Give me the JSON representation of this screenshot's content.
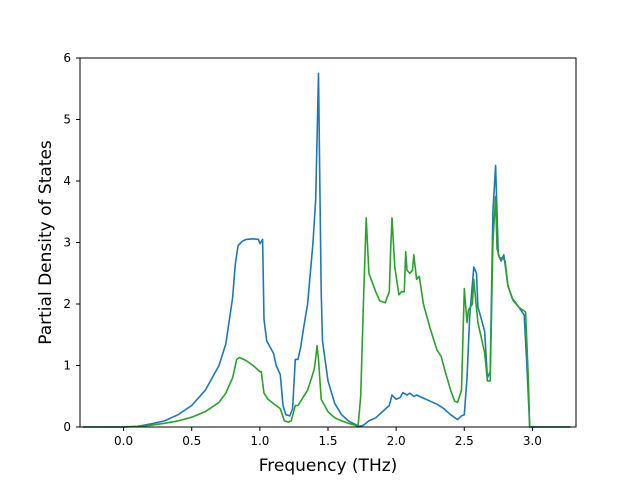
{
  "chart_data": {
    "type": "line",
    "title": "",
    "xlabel": "Frequency (THz)",
    "ylabel": "Partial Density of States",
    "xlim": [
      -0.32,
      3.32
    ],
    "ylim": [
      0,
      6
    ],
    "xticks": [
      0.0,
      0.5,
      1.0,
      1.5,
      2.0,
      2.5,
      3.0
    ],
    "xtick_labels": [
      "0.0",
      "0.5",
      "1.0",
      "1.5",
      "2.0",
      "2.5",
      "3.0"
    ],
    "yticks": [
      0,
      1,
      2,
      3,
      4,
      5,
      6
    ],
    "ytick_labels": [
      "0",
      "1",
      "2",
      "3",
      "4",
      "5",
      "6"
    ],
    "grid": false,
    "legend": false,
    "series": [
      {
        "color": "#1f77b4",
        "points": [
          [
            -0.3,
            0
          ],
          [
            0.0,
            0
          ],
          [
            0.1,
            0.01
          ],
          [
            0.15,
            0.03
          ],
          [
            0.2,
            0.05
          ],
          [
            0.3,
            0.1
          ],
          [
            0.4,
            0.2
          ],
          [
            0.5,
            0.35
          ],
          [
            0.6,
            0.6
          ],
          [
            0.7,
            1.0
          ],
          [
            0.75,
            1.35
          ],
          [
            0.8,
            2.1
          ],
          [
            0.82,
            2.65
          ],
          [
            0.84,
            2.95
          ],
          [
            0.87,
            3.02
          ],
          [
            0.9,
            3.05
          ],
          [
            0.95,
            3.06
          ],
          [
            0.99,
            3.05
          ],
          [
            1.0,
            2.98
          ],
          [
            1.02,
            3.05
          ],
          [
            1.03,
            1.75
          ],
          [
            1.05,
            1.4
          ],
          [
            1.1,
            1.2
          ],
          [
            1.12,
            1.0
          ],
          [
            1.15,
            0.85
          ],
          [
            1.17,
            0.35
          ],
          [
            1.19,
            0.2
          ],
          [
            1.22,
            0.18
          ],
          [
            1.24,
            0.3
          ],
          [
            1.26,
            1.1
          ],
          [
            1.28,
            1.1
          ],
          [
            1.3,
            1.3
          ],
          [
            1.32,
            1.6
          ],
          [
            1.35,
            2.0
          ],
          [
            1.37,
            2.5
          ],
          [
            1.39,
            3.0
          ],
          [
            1.41,
            3.7
          ],
          [
            1.43,
            5.75
          ],
          [
            1.44,
            4.0
          ],
          [
            1.45,
            2.2
          ],
          [
            1.46,
            1.4
          ],
          [
            1.5,
            0.75
          ],
          [
            1.55,
            0.38
          ],
          [
            1.6,
            0.2
          ],
          [
            1.65,
            0.1
          ],
          [
            1.7,
            0.04
          ],
          [
            1.73,
            0.01
          ],
          [
            1.76,
            0.03
          ],
          [
            1.8,
            0.1
          ],
          [
            1.85,
            0.15
          ],
          [
            1.9,
            0.25
          ],
          [
            1.95,
            0.35
          ],
          [
            1.97,
            0.52
          ],
          [
            2.0,
            0.45
          ],
          [
            2.03,
            0.48
          ],
          [
            2.05,
            0.56
          ],
          [
            2.08,
            0.52
          ],
          [
            2.1,
            0.55
          ],
          [
            2.13,
            0.5
          ],
          [
            2.15,
            0.52
          ],
          [
            2.2,
            0.47
          ],
          [
            2.25,
            0.42
          ],
          [
            2.3,
            0.37
          ],
          [
            2.35,
            0.3
          ],
          [
            2.4,
            0.2
          ],
          [
            2.45,
            0.12
          ],
          [
            2.48,
            0.18
          ],
          [
            2.5,
            0.2
          ],
          [
            2.52,
            0.8
          ],
          [
            2.54,
            1.8
          ],
          [
            2.57,
            2.6
          ],
          [
            2.59,
            2.5
          ],
          [
            2.6,
            1.95
          ],
          [
            2.62,
            1.8
          ],
          [
            2.65,
            1.55
          ],
          [
            2.67,
            0.8
          ],
          [
            2.69,
            0.9
          ],
          [
            2.71,
            3.5
          ],
          [
            2.73,
            4.25
          ],
          [
            2.75,
            2.8
          ],
          [
            2.77,
            2.7
          ],
          [
            2.79,
            2.8
          ],
          [
            2.82,
            2.3
          ],
          [
            2.85,
            2.1
          ],
          [
            2.9,
            1.95
          ],
          [
            2.94,
            1.82
          ],
          [
            2.96,
            1.0
          ],
          [
            2.98,
            0.0
          ],
          [
            3.0,
            0
          ],
          [
            3.28,
            0
          ]
        ]
      },
      {
        "color": "#2ca02c",
        "points": [
          [
            -0.3,
            0
          ],
          [
            0.0,
            0
          ],
          [
            0.1,
            0.01
          ],
          [
            0.2,
            0.03
          ],
          [
            0.3,
            0.06
          ],
          [
            0.4,
            0.1
          ],
          [
            0.5,
            0.16
          ],
          [
            0.6,
            0.25
          ],
          [
            0.7,
            0.4
          ],
          [
            0.75,
            0.55
          ],
          [
            0.8,
            0.8
          ],
          [
            0.83,
            1.1
          ],
          [
            0.85,
            1.13
          ],
          [
            0.9,
            1.08
          ],
          [
            0.95,
            1.0
          ],
          [
            1.0,
            0.9
          ],
          [
            1.01,
            0.9
          ],
          [
            1.03,
            0.55
          ],
          [
            1.06,
            0.45
          ],
          [
            1.1,
            0.38
          ],
          [
            1.15,
            0.3
          ],
          [
            1.18,
            0.1
          ],
          [
            1.21,
            0.08
          ],
          [
            1.23,
            0.1
          ],
          [
            1.26,
            0.35
          ],
          [
            1.28,
            0.35
          ],
          [
            1.3,
            0.42
          ],
          [
            1.35,
            0.6
          ],
          [
            1.38,
            0.8
          ],
          [
            1.4,
            0.95
          ],
          [
            1.42,
            1.32
          ],
          [
            1.43,
            1.1
          ],
          [
            1.45,
            0.45
          ],
          [
            1.5,
            0.25
          ],
          [
            1.55,
            0.15
          ],
          [
            1.6,
            0.1
          ],
          [
            1.65,
            0.06
          ],
          [
            1.7,
            0.03
          ],
          [
            1.72,
            0.0
          ],
          [
            1.74,
            0.5
          ],
          [
            1.76,
            2.0
          ],
          [
            1.78,
            3.4
          ],
          [
            1.8,
            2.5
          ],
          [
            1.85,
            2.2
          ],
          [
            1.88,
            2.05
          ],
          [
            1.92,
            2.02
          ],
          [
            1.95,
            2.2
          ],
          [
            1.96,
            2.9
          ],
          [
            1.97,
            3.4
          ],
          [
            1.99,
            2.6
          ],
          [
            2.02,
            2.15
          ],
          [
            2.04,
            2.2
          ],
          [
            2.06,
            2.2
          ],
          [
            2.07,
            2.85
          ],
          [
            2.08,
            2.55
          ],
          [
            2.1,
            2.5
          ],
          [
            2.12,
            2.55
          ],
          [
            2.13,
            2.8
          ],
          [
            2.15,
            2.4
          ],
          [
            2.17,
            2.45
          ],
          [
            2.2,
            2.0
          ],
          [
            2.25,
            1.6
          ],
          [
            2.3,
            1.25
          ],
          [
            2.33,
            1.15
          ],
          [
            2.36,
            0.9
          ],
          [
            2.4,
            0.6
          ],
          [
            2.43,
            0.42
          ],
          [
            2.45,
            0.4
          ],
          [
            2.48,
            0.6
          ],
          [
            2.5,
            2.25
          ],
          [
            2.52,
            1.7
          ],
          [
            2.53,
            1.9
          ],
          [
            2.56,
            2.0
          ],
          [
            2.57,
            2.4
          ],
          [
            2.58,
            2.15
          ],
          [
            2.6,
            1.7
          ],
          [
            2.63,
            1.4
          ],
          [
            2.65,
            1.2
          ],
          [
            2.67,
            0.75
          ],
          [
            2.69,
            0.75
          ],
          [
            2.71,
            3.0
          ],
          [
            2.73,
            3.75
          ],
          [
            2.74,
            2.9
          ],
          [
            2.76,
            2.75
          ],
          [
            2.78,
            2.75
          ],
          [
            2.8,
            2.7
          ],
          [
            2.82,
            2.3
          ],
          [
            2.86,
            2.05
          ],
          [
            2.9,
            1.95
          ],
          [
            2.95,
            1.87
          ],
          [
            2.97,
            0.8
          ],
          [
            2.98,
            0.0
          ],
          [
            3.0,
            0
          ],
          [
            3.28,
            0
          ]
        ]
      }
    ]
  }
}
